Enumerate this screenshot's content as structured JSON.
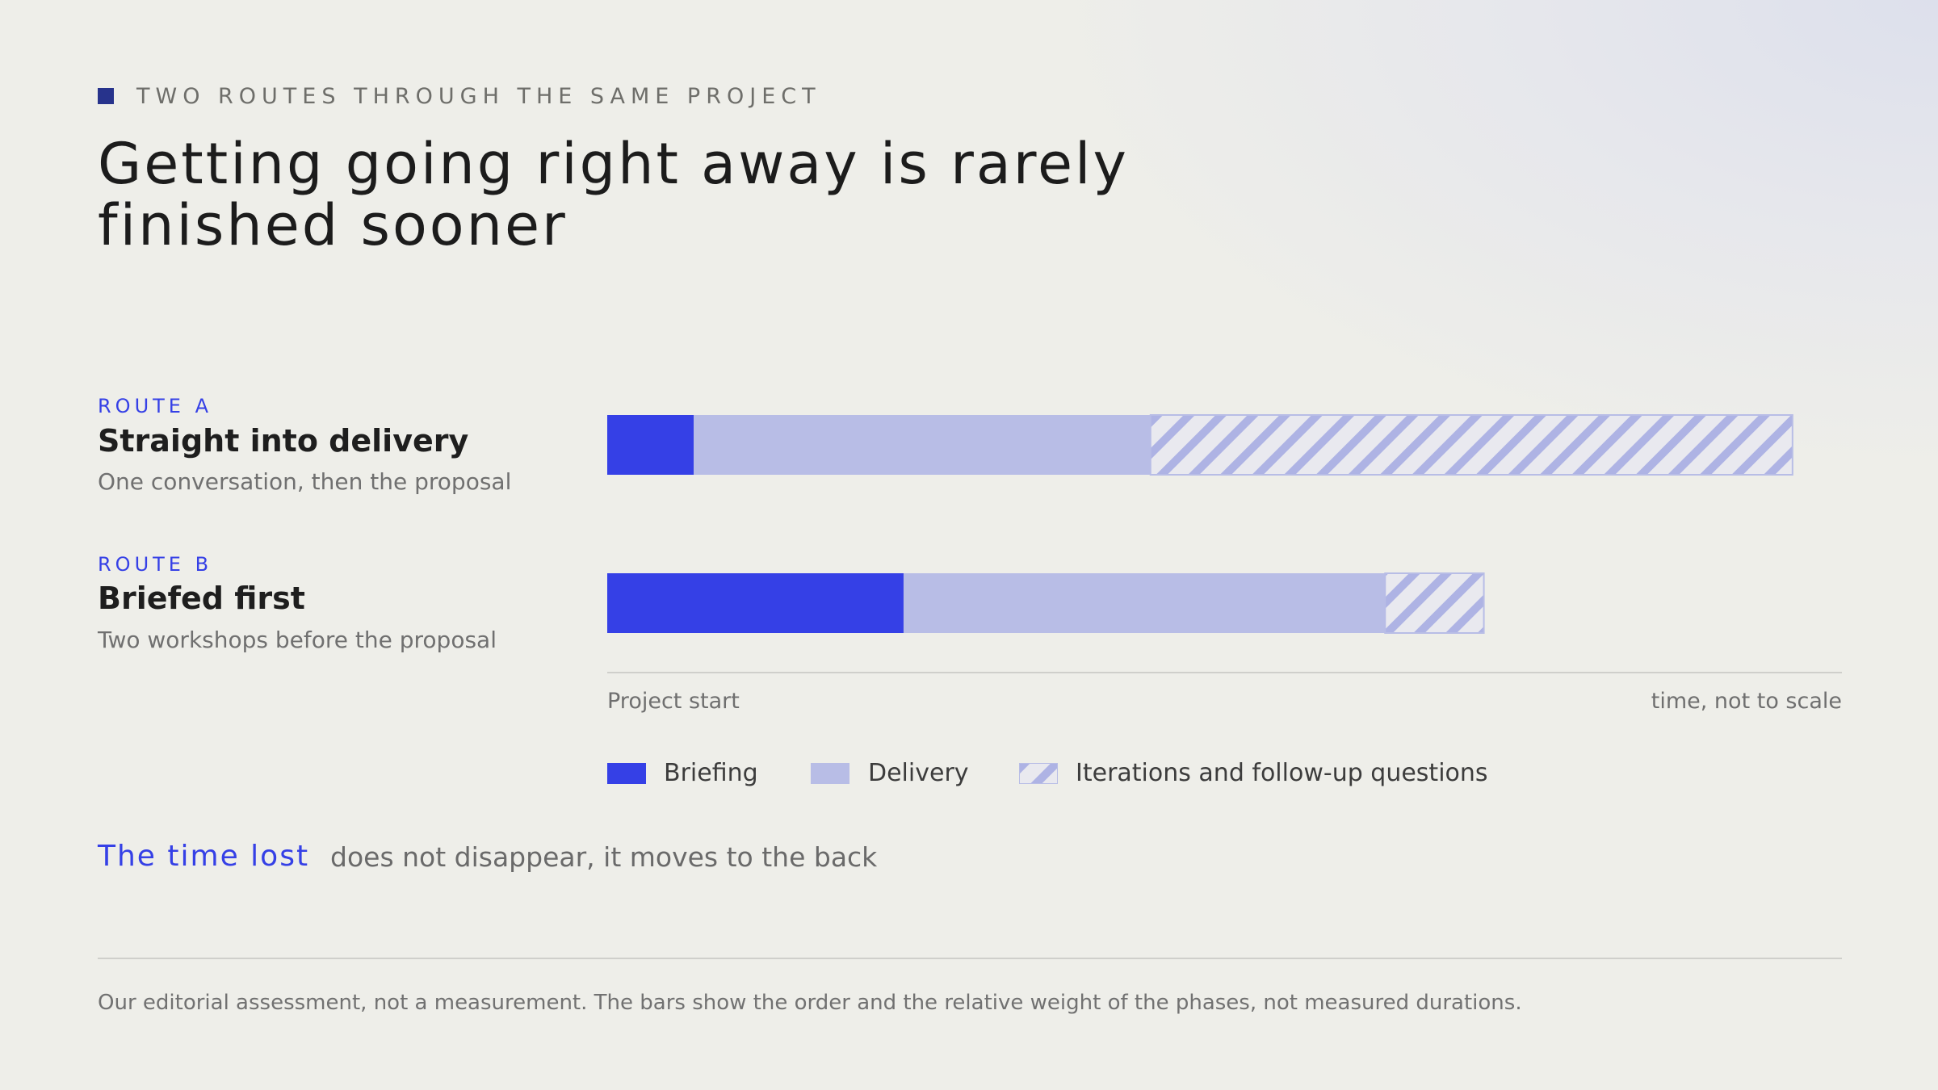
{
  "colors": {
    "briefing": "#3540e6",
    "delivery": "#b8bde6",
    "iterations_stripe": "#aeb3e4",
    "iterations_bg": "#e9e9ef",
    "accent": "#3540e6",
    "eyebrow_square": "#27338c"
  },
  "header": {
    "eyebrow": "TWO ROUTES THROUGH THE SAME PROJECT",
    "title": "Getting going right away is rarely finished sooner"
  },
  "chart_data": {
    "type": "bar",
    "orientation": "horizontal",
    "stacked": true,
    "categories": [
      "Straight into delivery",
      "Briefed first"
    ],
    "category_tags": [
      "ROUTE A",
      "ROUTE B"
    ],
    "category_subtitles": [
      "One conversation, then the proposal",
      "Two workshops before the proposal"
    ],
    "series": [
      {
        "name": "Briefing",
        "values": [
          7,
          24
        ]
      },
      {
        "name": "Delivery",
        "values": [
          37,
          39
        ]
      },
      {
        "name": "Iterations and follow-up questions",
        "values": [
          52,
          8
        ]
      }
    ],
    "xlim": [
      0,
      100
    ],
    "axis_start_label": "Project start",
    "axis_end_label": "time, not to scale",
    "legend_position": "bottom-left",
    "grid": false
  },
  "callout": {
    "emphasis": "The time lost",
    "rest": "does not disappear, it moves to the back"
  },
  "footnote": "Our editorial assessment, not a measurement. The bars show the order and the relative weight of the phases, not measured durations."
}
